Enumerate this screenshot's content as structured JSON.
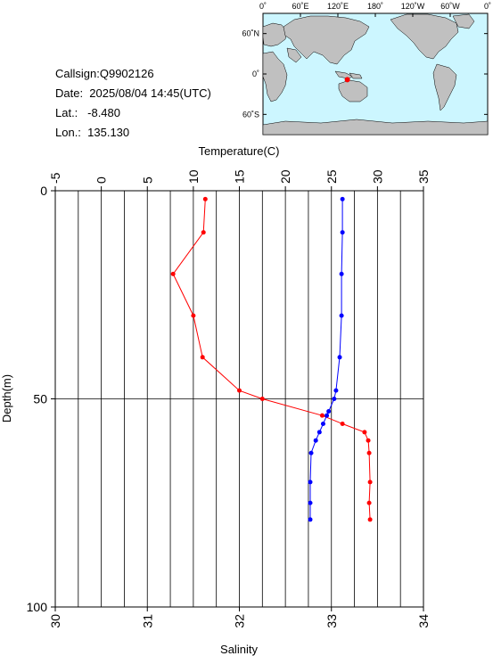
{
  "info": {
    "callsign": "Callsign:Q9902126",
    "date": "Date:  2025/08/04 14:45(UTC)",
    "lat": "Lat.:   -8.480",
    "lon": "Lon.:  135.130"
  },
  "map": {
    "lon_ticks": [
      "0˚",
      "60˚E",
      "120˚E",
      "180˚",
      "120˚W",
      "60˚W",
      "0˚"
    ],
    "lat_ticks": [
      "60˚N",
      "0˚",
      "60˚S"
    ],
    "station": {
      "lat": -8.48,
      "lon": 135.13
    },
    "colors": {
      "ocean": "#ccf6ff",
      "land": "#c0c0c0",
      "marker": "#ff0000"
    }
  },
  "chart_data": {
    "type": "line",
    "ylabel": "Depth(m)",
    "ylim": [
      100,
      0
    ],
    "yticks": [
      0,
      50,
      100
    ],
    "grid": true,
    "temperature_axis": {
      "label": "Temperature(C)",
      "lim": [
        -5,
        35
      ],
      "ticks": [
        -5,
        0,
        5,
        10,
        15,
        20,
        25,
        30,
        35
      ]
    },
    "salinity_axis": {
      "label": "Salinity",
      "lim": [
        30,
        34
      ],
      "ticks": [
        30,
        31,
        32,
        33,
        34
      ]
    },
    "series": [
      {
        "axis": "temperature",
        "color": "#ff0000",
        "depth": [
          2,
          10,
          20,
          30,
          40,
          48,
          50,
          54,
          56,
          58,
          60,
          63,
          70,
          75,
          79
        ],
        "values": [
          11.3,
          11.1,
          7.8,
          10.0,
          11.0,
          15.0,
          17.5,
          24.0,
          26.2,
          28.6,
          29.0,
          29.1,
          29.2,
          29.1,
          29.2
        ]
      },
      {
        "axis": "salinity",
        "color": "#0000ff",
        "depth": [
          2,
          10,
          20,
          30,
          40,
          48,
          50,
          53,
          54,
          56,
          58,
          60,
          63,
          70,
          75,
          79
        ],
        "values": [
          33.12,
          33.12,
          33.11,
          33.11,
          33.09,
          33.05,
          33.03,
          32.97,
          32.95,
          32.91,
          32.87,
          32.83,
          32.78,
          32.77,
          32.77,
          32.77
        ]
      }
    ]
  }
}
